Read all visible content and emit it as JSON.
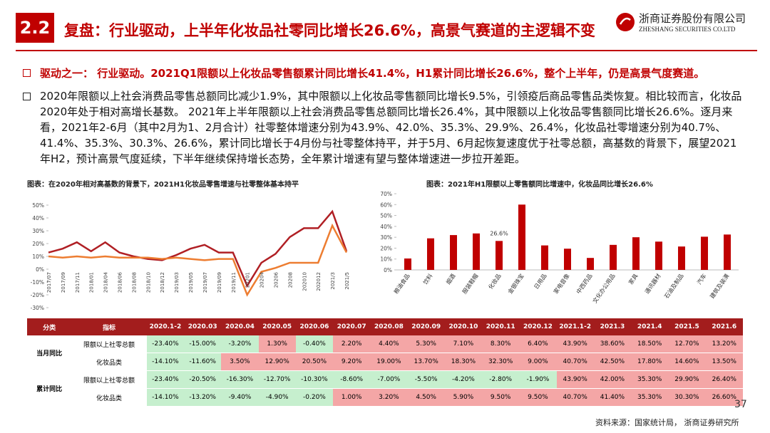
{
  "header": {
    "section": "2.2",
    "title": "复盘：行业驱动，上半年化妆品社零同比增长26.6%，高景气赛道的主逻辑不变",
    "logo_cn": "浙商证券股份有限公司",
    "logo_en": "ZHESHANG SECURITIES CO.LTD"
  },
  "bullets": [
    "驱动之一： 行业驱动。2021Q1限额以上化妆品零售额累计同比增长41.4%，H1累计同比增长26.6%，整个上半年，仍是高景气度赛道。",
    "2020年限额以上社会消费品零售总额同比减少1.9%，其中限额以上化妆品零售额同比增长9.5%，引领疫后商品零售品类恢复。相比较而言，化妆品2020年处于相对高增长基数。 2021年上半年限额以上社会消费品零售总额同比增长26.4%，其中限额以上化妆品零售额同比增长26.6%。逐月来看，2021年2-6月（其中2月为1、2月合计）社零整体增速分别为43.9%、42.0%、35.3%、29.9%、26.4%，化妆品社零增速分别为40.7%、41.4%、35.3%、30.3%、26.6%，累计同比增长于4月份与社零整体持平，并于5月、6月起恢复速度优于社零总额，高基数的背景下，展望2021年H2，预计高景气度延续，下半年继续保持增长态势，全年累计增速有望与整体增速进一步拉开差距。"
  ],
  "chart_data": [
    {
      "type": "line",
      "title": "图表：在2020年相对高基数的背景下，2021H1化妆品零售增速与社零整体基本持平",
      "categories": [
        "2017/07",
        "2017/09",
        "2017/11",
        "2018/01",
        "2018/04",
        "2018/06",
        "2018/08",
        "2018/10",
        "2018/12",
        "2019/03",
        "2019/05",
        "2019/07",
        "2019/09",
        "2019/11",
        "20201",
        "20204",
        "20206",
        "20208",
        "202010",
        "202012",
        "2021/3",
        "2021/5"
      ],
      "series": [
        {
          "color": "#b01f24",
          "values": [
            13,
            16,
            21,
            14,
            21,
            13,
            10,
            8,
            7,
            11,
            16,
            19,
            13,
            13,
            -13,
            5,
            12,
            25,
            32,
            32,
            45,
            14
          ]
        },
        {
          "color": "#ed7d31",
          "values": [
            10,
            9,
            10,
            9,
            10,
            9,
            9,
            9,
            8,
            9,
            8,
            7,
            8,
            8,
            -20,
            -2,
            1,
            5,
            5,
            5,
            34,
            13
          ]
        }
      ],
      "ylim": [
        -30,
        50
      ],
      "yticks": [
        {
          "value": -30,
          "label": "-30%"
        },
        {
          "value": -20,
          "label": "-20%"
        },
        {
          "value": -10,
          "label": "-10%"
        },
        {
          "value": 0,
          "label": "0%"
        },
        {
          "value": 10,
          "label": "10%"
        },
        {
          "value": 20,
          "label": "20%"
        },
        {
          "value": 30,
          "label": "30%"
        },
        {
          "value": 40,
          "label": "40%"
        },
        {
          "value": 50,
          "label": "50%"
        }
      ]
    },
    {
      "type": "bar",
      "title": "图表：2021年H1限额以上零售额同比增速中，化妆品同比增长26.6%",
      "color": "#c00000",
      "categories": [
        "粮油食品",
        "饮料",
        "烟酒",
        "服装鞋帽",
        "化妆品",
        "金银珠宝",
        "日用品",
        "家电音像",
        "中西药品",
        "文化办公用品",
        "家具",
        "通讯器材",
        "石油及制品",
        "汽车",
        "建筑及装潢"
      ],
      "values": [
        10.5,
        29,
        32,
        33.5,
        26.6,
        60,
        22.5,
        19.5,
        11,
        23,
        30,
        26,
        21.5,
        30.5,
        32.5
      ],
      "value_labels": [
        null,
        null,
        null,
        null,
        "26.6%",
        null,
        null,
        null,
        null,
        null,
        null,
        null,
        null,
        null,
        null
      ],
      "ylim": [
        0,
        70
      ],
      "yticks": [
        {
          "value": 0,
          "label": "0%"
        },
        {
          "value": 10,
          "label": "10%"
        },
        {
          "value": 20,
          "label": "20%"
        },
        {
          "value": 30,
          "label": "30%"
        },
        {
          "value": 40,
          "label": "40%"
        },
        {
          "value": 50,
          "label": "50%"
        },
        {
          "value": 60,
          "label": "60%"
        },
        {
          "value": 70,
          "label": "70%"
        }
      ]
    }
  ],
  "table": {
    "header": [
      "分类",
      "指标",
      "2020.1-2",
      "2020.03",
      "2020.04",
      "2020.05",
      "2020.06",
      "2020.07",
      "2020.08",
      "2020.09",
      "2020.10",
      "2020.11",
      "2020.12",
      "2021.1-2",
      "2021.3",
      "2021.4",
      "2021.5",
      "2021.6"
    ],
    "groups": [
      {
        "label": "当月同比",
        "rows": [
          {
            "indicator": "限额以上社零总额",
            "cells": [
              "-23.40%",
              "-15.00%",
              "-3.20%",
              "1.30%",
              "-0.40%",
              "2.20%",
              "4.40%",
              "5.30%",
              "7.10%",
              "8.30%",
              "6.40%",
              "43.90%",
              "38.60%",
              "18.50%",
              "12.70%",
              "13.20%"
            ]
          },
          {
            "indicator": "化妆品类",
            "cells": [
              "-14.10%",
              "-11.60%",
              "3.50%",
              "12.90%",
              "20.50%",
              "9.20%",
              "19.00%",
              "13.70%",
              "18.30%",
              "32.30%",
              "9.00%",
              "40.70%",
              "42.50%",
              "17.80%",
              "14.60%",
              "13.50%"
            ]
          }
        ]
      },
      {
        "label": "累计同比",
        "rows": [
          {
            "indicator": "限额以上社零总额",
            "cells": [
              "-23.40%",
              "-20.50%",
              "-16.30%",
              "-12.70%",
              "-10.30%",
              "-8.60%",
              "-7.00%",
              "-5.50%",
              "-4.20%",
              "-2.80%",
              "-1.90%",
              "43.90%",
              "42.00%",
              "35.30%",
              "29.90%",
              "26.40%"
            ]
          },
          {
            "indicator": "化妆品类",
            "cells": [
              "-14.10%",
              "-13.20%",
              "-9.40%",
              "-4.90%",
              "-0.20%",
              "1.00%",
              "3.20%",
              "4.50%",
              "5.90%",
              "9.50%",
              "9.50%",
              "40.70%",
              "41.40%",
              "35.30%",
              "30.30%",
              "26.60%"
            ]
          }
        ]
      }
    ]
  },
  "footer": {
    "page": "37",
    "source": "资料来源：国家统计局， 浙商证券研究所"
  }
}
